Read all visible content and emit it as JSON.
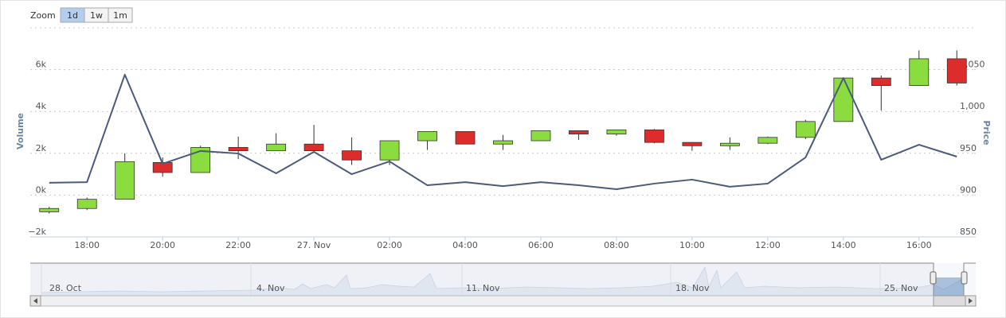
{
  "chart_data": {
    "type": "candlestick",
    "range_selector": {
      "label": "Zoom",
      "buttons": [
        "1d",
        "1w",
        "1m"
      ],
      "selected": 0
    },
    "categories": [
      null,
      "18:00",
      null,
      "20:00",
      null,
      "22:00",
      null,
      "27. Nov",
      null,
      "02:00",
      null,
      "04:00",
      null,
      "06:00",
      null,
      "08:00",
      null,
      "10:00",
      null,
      "12:00",
      null,
      "14:00",
      null,
      "16:00",
      null
    ],
    "ylabel": "Volume",
    "y2label": "Price",
    "ylim": [
      -2000,
      8000
    ],
    "yticks": [
      {
        "value": -2000,
        "label": "−2k"
      },
      {
        "value": 0,
        "label": "0k"
      },
      {
        "value": 2000,
        "label": "2k"
      },
      {
        "value": 4000,
        "label": "4k"
      },
      {
        "value": 6000,
        "label": "6k"
      }
    ],
    "y2lim": [
      850,
      1100
    ],
    "y2ticks": [
      850,
      900,
      950,
      {
        "value": 1000,
        "label": "1,000"
      },
      {
        "value": 1050,
        "label": "1,050"
      }
    ],
    "grid": true,
    "series": [
      {
        "type": "line",
        "axis": "y",
        "color": "#4b5b7c",
        "values": [
          590,
          620,
          5760,
          1500,
          2110,
          1990,
          1040,
          2070,
          1000,
          1610,
          470,
          620,
          430,
          620,
          470,
          280,
          550,
          740,
          400,
          550,
          1800,
          5600,
          1690,
          2410,
          1840
        ]
      },
      {
        "type": "candlestick",
        "axis": "y2",
        "up_color": "#8bdc3f",
        "down_color": "#dd2c2c",
        "open": [
          880,
          884,
          895,
          939,
          927,
          957,
          953,
          961,
          953,
          942,
          965,
          976,
          961,
          965,
          977,
          973,
          978,
          963,
          959,
          962,
          969,
          988,
          1040,
          1031,
          1063
        ],
        "high": [
          886,
          897,
          950,
          945,
          959,
          970,
          974,
          984,
          969,
          965,
          976,
          976,
          972,
          977,
          977,
          978,
          979,
          963,
          969,
          970,
          990,
          1040,
          1043,
          1073,
          1073
        ],
        "low": [
          878,
          882,
          895,
          922,
          927,
          943,
          953,
          953,
          936,
          936,
          954,
          961,
          954,
          965,
          966,
          971,
          962,
          953,
          954,
          961,
          967,
          988,
          1001,
          1031,
          1031
        ],
        "close": [
          884,
          895,
          940,
          927,
          957,
          953,
          961,
          953,
          942,
          965,
          976,
          961,
          965,
          977,
          973,
          978,
          963,
          959,
          962,
          969,
          988,
          1040,
          1031,
          1063,
          1034
        ]
      }
    ],
    "navigator": {
      "labels": [
        "28. Oct",
        "4. Nov",
        "11. Nov",
        "18. Nov",
        "25. Nov"
      ]
    }
  }
}
